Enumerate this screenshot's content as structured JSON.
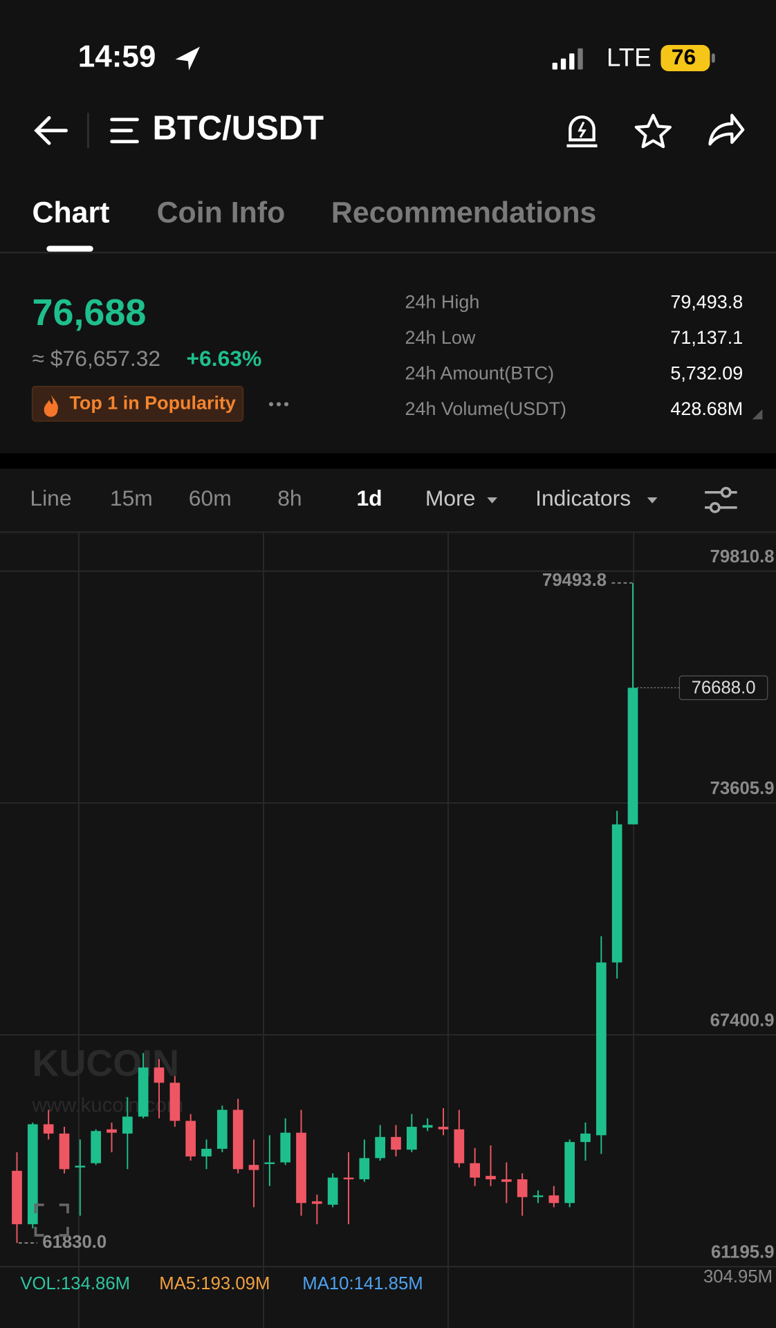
{
  "status_bar": {
    "time": "14:59",
    "network": "LTE",
    "battery": "76"
  },
  "header": {
    "pair": "BTC/USDT"
  },
  "tabs": [
    "Chart",
    "Coin Info",
    "Recommendations"
  ],
  "ticker": {
    "price": "76,688",
    "fiat_price": "≈ $76,657.32",
    "change": "+6.63%",
    "badge": "Top 1 in Popularity",
    "stats": [
      {
        "label": "24h High",
        "value": "79,493.8"
      },
      {
        "label": "24h Low",
        "value": "71,137.1"
      },
      {
        "label": "24h Amount(BTC)",
        "value": "5,732.09"
      },
      {
        "label": "24h Volume(USDT)",
        "value": "428.68M"
      }
    ]
  },
  "toolbar": [
    "Line",
    "15m",
    "60m",
    "8h",
    "1d",
    "More",
    "Indicators"
  ],
  "watermark": {
    "brand": "KUCOIN",
    "url": "www.kucoin.com"
  },
  "chart_data": {
    "type": "candlestick",
    "ylim": [
      61195.9,
      80853.6
    ],
    "yticks": [
      79810.8,
      73605.9,
      67400.9,
      61195.9
    ],
    "up_color": "#1fbf8d",
    "down_color": "#ef5663",
    "high_marker": 79493.8,
    "low_marker": {
      "value": 61830,
      "label": "61830.0"
    },
    "last_price": {
      "value": 76688,
      "label": "76688.0"
    },
    "candles": [
      {
        "open": 63761,
        "high": 64259,
        "low": 61830,
        "close": 62332
      },
      {
        "open": 62332,
        "high": 65053,
        "low": 62219,
        "close": 65007
      },
      {
        "open": 65007,
        "high": 65393,
        "low": 64599,
        "close": 64758
      },
      {
        "open": 64758,
        "high": 64939,
        "low": 63693,
        "close": 63806
      },
      {
        "open": 63851,
        "high": 64599,
        "low": 62559,
        "close": 63897
      },
      {
        "open": 63965,
        "high": 64871,
        "low": 63919,
        "close": 64826
      },
      {
        "open": 64871,
        "high": 65053,
        "low": 64259,
        "close": 64781
      },
      {
        "open": 64758,
        "high": 65733,
        "low": 63806,
        "close": 65212
      },
      {
        "open": 65212,
        "high": 66912,
        "low": 65166,
        "close": 66526
      },
      {
        "open": 66526,
        "high": 66753,
        "low": 65166,
        "close": 66118
      },
      {
        "open": 66118,
        "high": 66300,
        "low": 64939,
        "close": 65098
      },
      {
        "open": 65098,
        "high": 65280,
        "low": 64033,
        "close": 64146
      },
      {
        "open": 64146,
        "high": 64599,
        "low": 63806,
        "close": 64350
      },
      {
        "open": 64350,
        "high": 65506,
        "low": 64259,
        "close": 65393
      },
      {
        "open": 65393,
        "high": 65688,
        "low": 63693,
        "close": 63806
      },
      {
        "open": 63919,
        "high": 64599,
        "low": 62786,
        "close": 63783
      },
      {
        "open": 63942,
        "high": 64713,
        "low": 63353,
        "close": 63987
      },
      {
        "open": 63987,
        "high": 65166,
        "low": 63919,
        "close": 64781
      },
      {
        "open": 64781,
        "high": 65393,
        "low": 62559,
        "close": 62899
      },
      {
        "open": 62945,
        "high": 63126,
        "low": 62332,
        "close": 62877
      },
      {
        "open": 62854,
        "high": 63693,
        "low": 62786,
        "close": 63579
      },
      {
        "open": 63579,
        "high": 64259,
        "low": 62332,
        "close": 63534
      },
      {
        "open": 63534,
        "high": 64599,
        "low": 63466,
        "close": 64101
      },
      {
        "open": 64101,
        "high": 64985,
        "low": 64033,
        "close": 64667
      },
      {
        "open": 64667,
        "high": 64985,
        "low": 64146,
        "close": 64327
      },
      {
        "open": 64327,
        "high": 65280,
        "low": 64259,
        "close": 64939
      },
      {
        "open": 64917,
        "high": 65166,
        "low": 64826,
        "close": 64985
      },
      {
        "open": 64939,
        "high": 65438,
        "low": 64713,
        "close": 64871
      },
      {
        "open": 64871,
        "high": 65393,
        "low": 63851,
        "close": 63965
      },
      {
        "open": 63965,
        "high": 64373,
        "low": 63353,
        "close": 63579
      },
      {
        "open": 63625,
        "high": 64441,
        "low": 63353,
        "close": 63534
      },
      {
        "open": 63534,
        "high": 63987,
        "low": 62899,
        "close": 63466
      },
      {
        "open": 63534,
        "high": 63693,
        "low": 62559,
        "close": 63058
      },
      {
        "open": 63058,
        "high": 63239,
        "low": 62899,
        "close": 63103
      },
      {
        "open": 63103,
        "high": 63353,
        "low": 62786,
        "close": 62899
      },
      {
        "open": 62899,
        "high": 64599,
        "low": 62786,
        "close": 64531
      },
      {
        "open": 64531,
        "high": 65053,
        "low": 64033,
        "close": 64758
      },
      {
        "open": 64713,
        "high": 70040,
        "low": 64214,
        "close": 69337
      },
      {
        "open": 69337,
        "high": 73395,
        "low": 68907,
        "close": 73033
      },
      {
        "open": 73033,
        "high": 79493.8,
        "low": 73033,
        "close": 76688
      }
    ],
    "volume": {
      "vol": "VOL:134.86M",
      "ma5": "MA5:193.09M",
      "ma10": "MA10:141.85M",
      "axis_max": "304.95M"
    }
  }
}
